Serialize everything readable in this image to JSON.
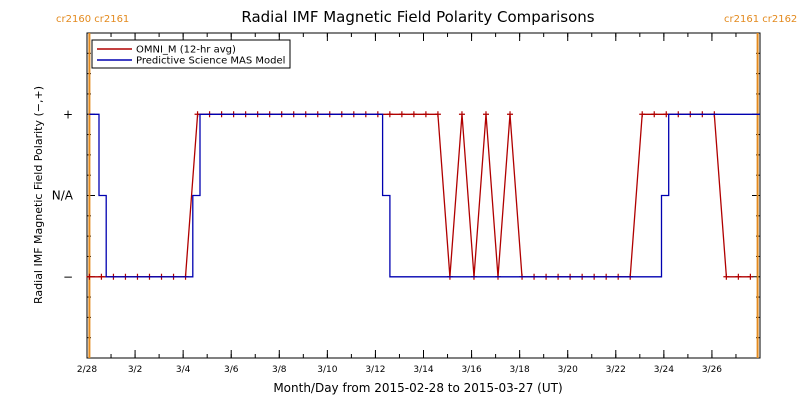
{
  "chart_data": {
    "type": "line",
    "title": "Radial IMF Magnetic Field Polarity Comparisons",
    "xlabel": "Month/Day from 2015-02-28 to 2015-03-27 (UT)",
    "ylabel": "Radial IMF Magnetic Field Polarity (−,+)",
    "xlim": [
      0,
      28
    ],
    "ylim": [
      -2.0,
      2.0
    ],
    "x_ticks": [
      {
        "x": 0,
        "label": "2/28"
      },
      {
        "x": 2,
        "label": "3/2"
      },
      {
        "x": 4,
        "label": "3/4"
      },
      {
        "x": 6,
        "label": "3/6"
      },
      {
        "x": 8,
        "label": "3/8"
      },
      {
        "x": 10,
        "label": "3/10"
      },
      {
        "x": 12,
        "label": "3/12"
      },
      {
        "x": 14,
        "label": "3/14"
      },
      {
        "x": 16,
        "label": "3/16"
      },
      {
        "x": 18,
        "label": "3/18"
      },
      {
        "x": 20,
        "label": "3/20"
      },
      {
        "x": 22,
        "label": "3/22"
      },
      {
        "x": 24,
        "label": "3/24"
      },
      {
        "x": 26,
        "label": "3/26"
      }
    ],
    "y_ticks": [
      {
        "y": 1,
        "label": "+"
      },
      {
        "y": 0,
        "label": "N/A"
      },
      {
        "y": -1,
        "label": "−"
      }
    ],
    "carrington_markers": [
      {
        "x": 0.1,
        "labels": [
          "cr2160",
          "cr2161"
        ]
      },
      {
        "x": 27.9,
        "labels": [
          "cr2161",
          "cr2162"
        ]
      }
    ],
    "legend": {
      "position": "top-left"
    },
    "series": [
      {
        "name": "OMNI_M (12-hr avg)",
        "color": "#b00000",
        "markers": true,
        "x": [
          0.1,
          0.6,
          1.1,
          1.6,
          2.1,
          2.6,
          3.1,
          3.6,
          4.1,
          4.6,
          5.1,
          5.6,
          6.1,
          6.6,
          7.1,
          7.6,
          8.1,
          8.6,
          9.1,
          9.6,
          10.1,
          10.6,
          11.1,
          11.6,
          12.1,
          12.6,
          13.1,
          13.6,
          14.1,
          14.6,
          15.1,
          15.6,
          16.1,
          16.6,
          17.1,
          17.6,
          18.1,
          18.6,
          19.1,
          19.6,
          20.1,
          20.6,
          21.1,
          21.6,
          22.1,
          22.6,
          23.1,
          23.6,
          24.1,
          24.6,
          25.1,
          25.6,
          26.1,
          26.6,
          27.1,
          27.6
        ],
        "y": [
          -1,
          -1,
          -1,
          -1,
          -1,
          -1,
          -1,
          -1,
          -1,
          1,
          1,
          1,
          1,
          1,
          1,
          1,
          1,
          1,
          1,
          1,
          1,
          1,
          1,
          1,
          1,
          1,
          1,
          1,
          1,
          1,
          -1,
          1,
          -1,
          1,
          -1,
          1,
          -1,
          -1,
          -1,
          -1,
          -1,
          -1,
          -1,
          -1,
          -1,
          -1,
          1,
          1,
          1,
          1,
          1,
          1,
          1,
          -1,
          -1,
          -1
        ]
      },
      {
        "name": "Predictive Science MAS Model",
        "color": "#0000b0",
        "markers": false,
        "step": true,
        "x": [
          0.1,
          0.5,
          0.5,
          0.8,
          0.8,
          4.4,
          4.4,
          4.7,
          4.7,
          12.3,
          12.3,
          12.6,
          12.6,
          23.9,
          23.9,
          24.2,
          24.2,
          28.0
        ],
        "y": [
          1,
          1,
          0,
          0,
          -1,
          -1,
          0,
          0,
          1,
          1,
          0,
          0,
          -1,
          -1,
          0,
          0,
          1,
          1
        ]
      }
    ]
  }
}
